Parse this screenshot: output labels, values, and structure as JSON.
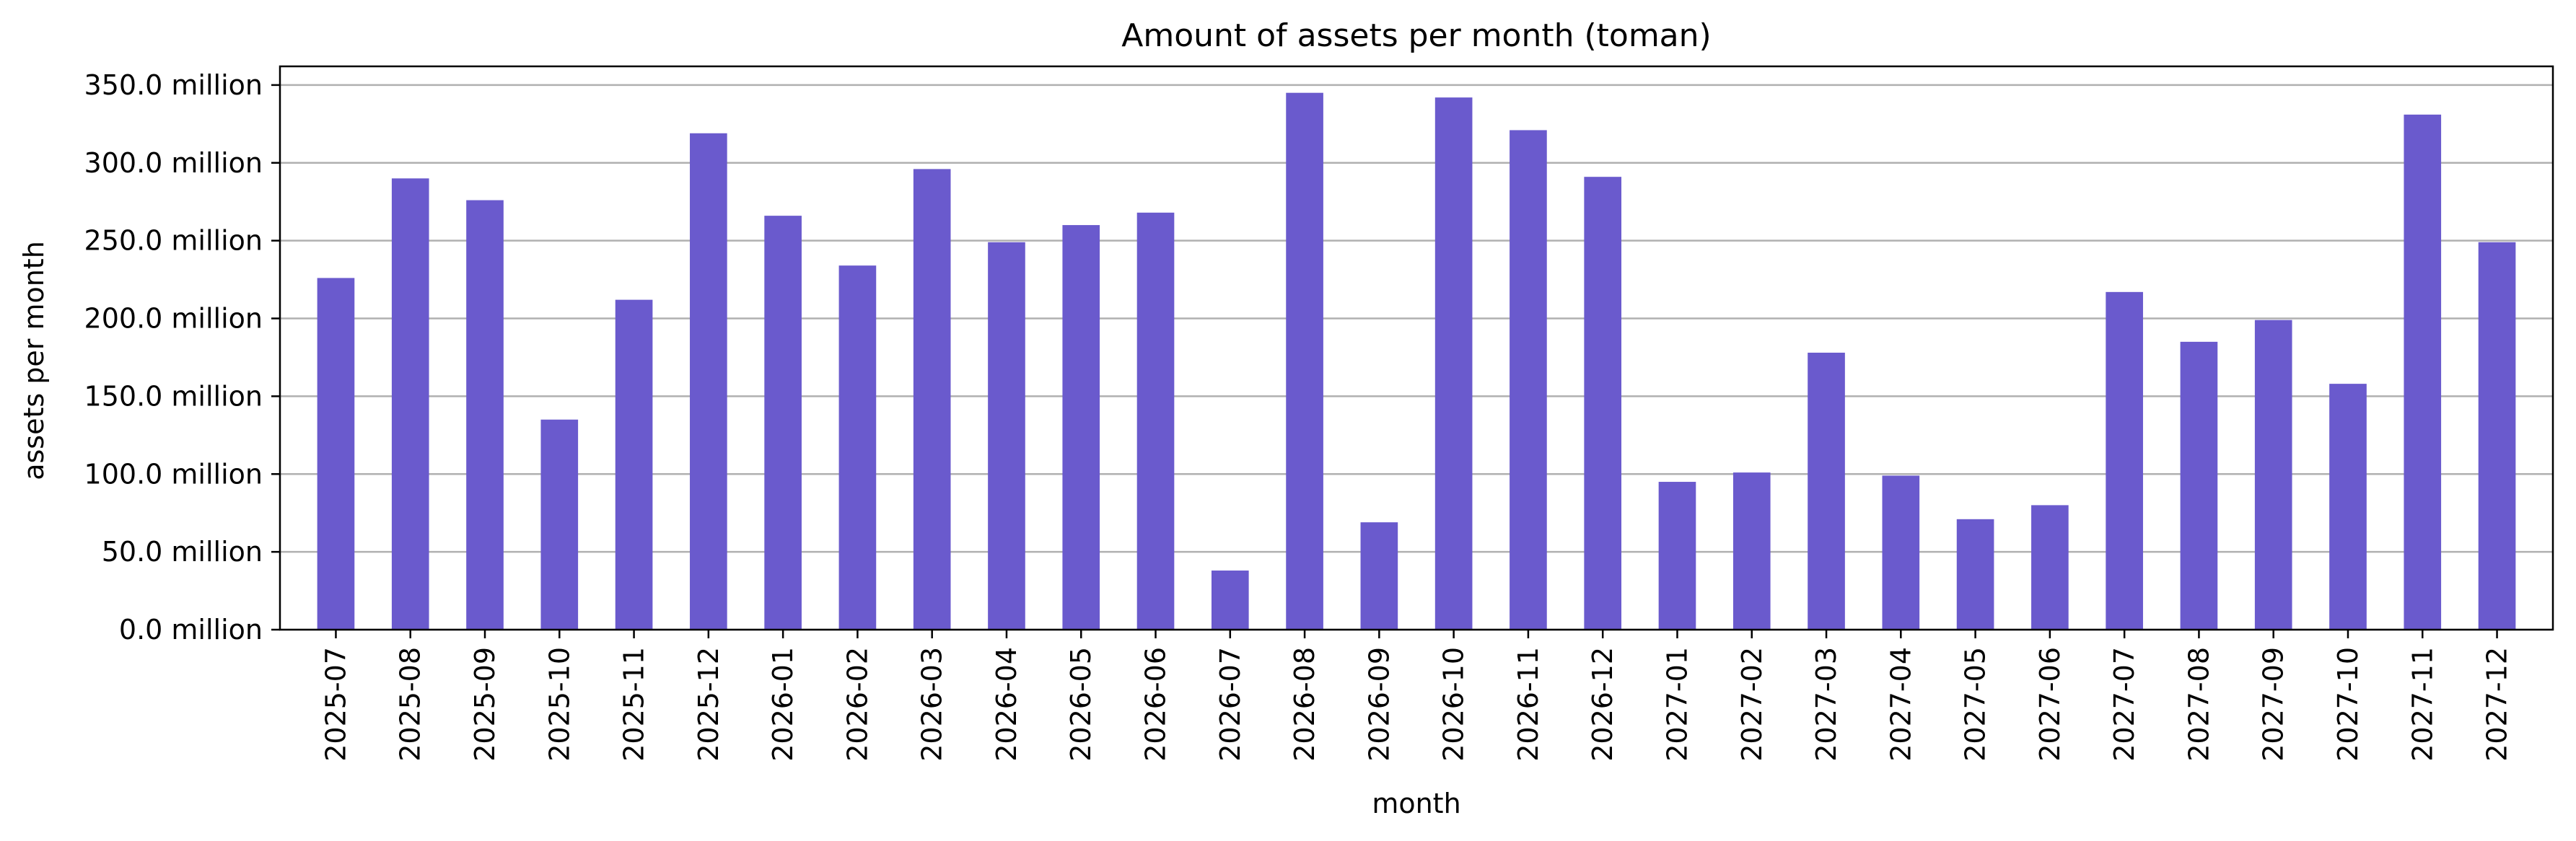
{
  "chart_data": {
    "type": "bar",
    "title": "Amount of assets per month (toman)",
    "xlabel": "month",
    "ylabel": "assets per month",
    "categories": [
      "2025-07",
      "2025-08",
      "2025-09",
      "2025-10",
      "2025-11",
      "2025-12",
      "2026-01",
      "2026-02",
      "2026-03",
      "2026-04",
      "2026-05",
      "2026-06",
      "2026-07",
      "2026-08",
      "2026-09",
      "2026-10",
      "2026-11",
      "2026-12",
      "2027-01",
      "2027-02",
      "2027-03",
      "2027-04",
      "2027-05",
      "2027-06",
      "2027-07",
      "2027-08",
      "2027-09",
      "2027-10",
      "2027-11",
      "2027-12"
    ],
    "series": [
      {
        "values": [
          226,
          290,
          276,
          135,
          212,
          319,
          266,
          234,
          296,
          249,
          260,
          268,
          38,
          345,
          69,
          342,
          321,
          291,
          95,
          101,
          178,
          99,
          71,
          80,
          217,
          185,
          199,
          158,
          331,
          249
        ],
        "color": "#6a5acd"
      }
    ],
    "value_unit": "million",
    "ylim": [
      0,
      362
    ],
    "yticks": [
      {
        "value": 0,
        "label": "0.0 million"
      },
      {
        "value": 50,
        "label": "50.0 million"
      },
      {
        "value": 100,
        "label": "100.0 million"
      },
      {
        "value": 150,
        "label": "150.0 million"
      },
      {
        "value": 200,
        "label": "200.0 million"
      },
      {
        "value": 250,
        "label": "250.0 million"
      },
      {
        "value": 300,
        "label": "300.0 million"
      },
      {
        "value": 350,
        "label": "350.0 million"
      }
    ],
    "grid": "horizontal",
    "grid_color": "#b0b0b0",
    "legend": "none"
  }
}
